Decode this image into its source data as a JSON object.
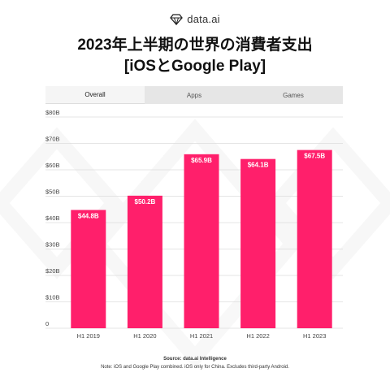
{
  "brand": {
    "name": "data.ai",
    "icon": "diamond-logo-icon"
  },
  "title": {
    "line1": "2023年上半期の世界の消費者支出",
    "line2": "[iOSとGoogle Play]"
  },
  "tabs": [
    {
      "label": "Overall",
      "active": true
    },
    {
      "label": "Apps",
      "active": false
    },
    {
      "label": "Games",
      "active": false
    }
  ],
  "chart_data": {
    "type": "bar",
    "categories": [
      "H1 2019",
      "H1 2020",
      "H1 2021",
      "H1 2022",
      "H1 2023"
    ],
    "values": [
      44.8,
      50.2,
      65.9,
      64.1,
      67.5
    ],
    "data_labels": [
      "$44.8B",
      "$50.2B",
      "$65.9B",
      "$64.1B",
      "$67.5B"
    ],
    "y_ticks": [
      {
        "value": 0,
        "label": "0"
      },
      {
        "value": 10,
        "label": "$10B"
      },
      {
        "value": 20,
        "label": "$20B"
      },
      {
        "value": 30,
        "label": "$30B"
      },
      {
        "value": 40,
        "label": "$40B"
      },
      {
        "value": 50,
        "label": "$50B"
      },
      {
        "value": 60,
        "label": "$60B"
      },
      {
        "value": 70,
        "label": "$70B"
      },
      {
        "value": 80,
        "label": "$80B"
      }
    ],
    "ylim": [
      0,
      80
    ],
    "grid": true,
    "bar_color": "#ff1f6b",
    "title": "2023年上半期の世界の消費者支出 [iOSとGoogle Play]",
    "xlabel": "",
    "ylabel": ""
  },
  "footer": {
    "source": "Source: data.ai Intelligence",
    "note": "Note: iOS and Google Play combined. iOS only for China. Excludes third-party Android."
  }
}
